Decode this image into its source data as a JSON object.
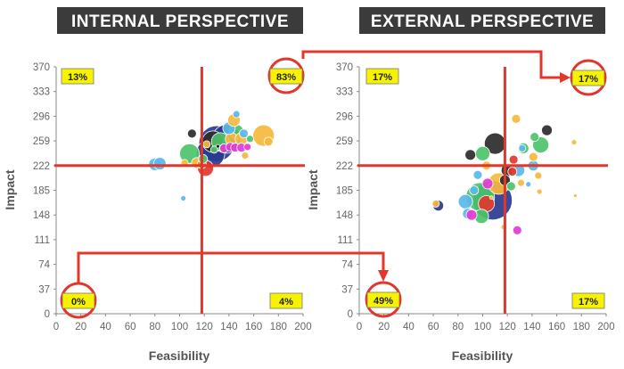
{
  "colors": {
    "accent_red": "#e2372b",
    "highlight_yellow": "#f6f200",
    "banner_dark": "#3b3b3b"
  },
  "chart_data": [
    {
      "type": "scatter",
      "title": "INTERNAL PERSPECTIVE",
      "xlabel": "Feasibility",
      "ylabel": "Impact",
      "xlim": [
        0,
        200
      ],
      "ylim": [
        0,
        370
      ],
      "x_ticks": [
        "0",
        "20",
        "40",
        "60",
        "80",
        "100",
        "120",
        "140",
        "160",
        "180",
        "200"
      ],
      "y_ticks": [
        "0",
        "37",
        "74",
        "111",
        "148",
        "185",
        "222",
        "259",
        "296",
        "333",
        "370"
      ],
      "divider_x": 118,
      "divider_y": 222,
      "quadrant_percentages": {
        "top_left": "13%",
        "top_right": "83%",
        "bottom_left": "0%",
        "bottom_right": "4%"
      },
      "points": [
        {
          "x": 80,
          "y": 224,
          "size": 7,
          "color": "#5bb8e8"
        },
        {
          "x": 84,
          "y": 225,
          "size": 7,
          "color": "#5bb8e8"
        },
        {
          "x": 103,
          "y": 173,
          "size": 3,
          "color": "#5bb8e8"
        },
        {
          "x": 108,
          "y": 240,
          "size": 11,
          "color": "#4cc36a"
        },
        {
          "x": 104,
          "y": 226,
          "size": 4,
          "color": "#f7b83c"
        },
        {
          "x": 110,
          "y": 270,
          "size": 5,
          "color": "#2b2b2b"
        },
        {
          "x": 114,
          "y": 226,
          "size": 6,
          "color": "#f7b83c"
        },
        {
          "x": 118,
          "y": 224,
          "size": 5,
          "color": "#f07b2a"
        },
        {
          "x": 121,
          "y": 218,
          "size": 9,
          "color": "#e2372b"
        },
        {
          "x": 125,
          "y": 240,
          "size": 16,
          "color": "#2a3b8f"
        },
        {
          "x": 119,
          "y": 232,
          "size": 5,
          "color": "#4cc36a"
        },
        {
          "x": 130,
          "y": 255,
          "size": 20,
          "color": "#2a3b8f"
        },
        {
          "x": 127,
          "y": 258,
          "size": 12,
          "color": "#2b2b2b"
        },
        {
          "x": 138,
          "y": 262,
          "size": 16,
          "color": "#2a3b8f"
        },
        {
          "x": 133,
          "y": 258,
          "size": 10,
          "color": "#4cc36a"
        },
        {
          "x": 142,
          "y": 262,
          "size": 7,
          "color": "#f7b83c"
        },
        {
          "x": 140,
          "y": 278,
          "size": 7,
          "color": "#5bb8e8"
        },
        {
          "x": 144,
          "y": 290,
          "size": 7,
          "color": "#f7b83c"
        },
        {
          "x": 146,
          "y": 299,
          "size": 4,
          "color": "#5bb8e8"
        },
        {
          "x": 146,
          "y": 273,
          "size": 8,
          "color": "#4cc36a"
        },
        {
          "x": 150,
          "y": 262,
          "size": 7,
          "color": "#f7b83c"
        },
        {
          "x": 152,
          "y": 270,
          "size": 5,
          "color": "#5bb8e8"
        },
        {
          "x": 136,
          "y": 248,
          "size": 5,
          "color": "#e33bd3"
        },
        {
          "x": 141,
          "y": 250,
          "size": 5,
          "color": "#e33bd3"
        },
        {
          "x": 145,
          "y": 249,
          "size": 5,
          "color": "#e33bd3"
        },
        {
          "x": 150,
          "y": 249,
          "size": 5,
          "color": "#e33bd3"
        },
        {
          "x": 155,
          "y": 250,
          "size": 4,
          "color": "#e33bd3"
        },
        {
          "x": 128,
          "y": 246,
          "size": 4,
          "color": "#4cc36a"
        },
        {
          "x": 122,
          "y": 254,
          "size": 4,
          "color": "#f7b83c"
        },
        {
          "x": 153,
          "y": 237,
          "size": 4,
          "color": "#f7b83c"
        },
        {
          "x": 131,
          "y": 251,
          "size": 2,
          "color": "#111111"
        },
        {
          "x": 157,
          "y": 262,
          "size": 4,
          "color": "#4cc36a"
        },
        {
          "x": 168,
          "y": 267,
          "size": 12,
          "color": "#f7b83c"
        },
        {
          "x": 172,
          "y": 258,
          "size": 5,
          "color": "#f7b83c"
        }
      ]
    },
    {
      "type": "scatter",
      "title": "EXTERNAL PERSPECTIVE",
      "xlabel": "Feasibility",
      "ylabel": "Impact",
      "xlim": [
        0,
        200
      ],
      "ylim": [
        0,
        370
      ],
      "x_ticks": [
        "0",
        "20",
        "40",
        "60",
        "80",
        "100",
        "120",
        "140",
        "160",
        "180",
        "200"
      ],
      "y_ticks": [
        "0",
        "37",
        "74",
        "111",
        "148",
        "185",
        "222",
        "259",
        "296",
        "333",
        "370"
      ],
      "divider_x": 118,
      "divider_y": 222,
      "quadrant_percentages": {
        "top_left": "17%",
        "top_right": "17%",
        "bottom_left": "49%",
        "bottom_right": "17%"
      },
      "points": [
        {
          "x": 108,
          "y": 170,
          "size": 22,
          "color": "#2a3b8f"
        },
        {
          "x": 98,
          "y": 175,
          "size": 16,
          "color": "#4cc36a"
        },
        {
          "x": 113,
          "y": 195,
          "size": 12,
          "color": "#f7b83c"
        },
        {
          "x": 103,
          "y": 165,
          "size": 9,
          "color": "#e2372b"
        },
        {
          "x": 110,
          "y": 255,
          "size": 12,
          "color": "#2b2b2b"
        },
        {
          "x": 90,
          "y": 238,
          "size": 6,
          "color": "#2b2b2b"
        },
        {
          "x": 100,
          "y": 240,
          "size": 8,
          "color": "#4cc36a"
        },
        {
          "x": 103,
          "y": 222,
          "size": 5,
          "color": "#f7b83c"
        },
        {
          "x": 96,
          "y": 208,
          "size": 5,
          "color": "#5bb8e8"
        },
        {
          "x": 93,
          "y": 185,
          "size": 5,
          "color": "#5bb8e8"
        },
        {
          "x": 86,
          "y": 168,
          "size": 8,
          "color": "#5bb8e8"
        },
        {
          "x": 88,
          "y": 150,
          "size": 6,
          "color": "#5bb8e8"
        },
        {
          "x": 91,
          "y": 148,
          "size": 6,
          "color": "#e33bd3"
        },
        {
          "x": 99,
          "y": 146,
          "size": 8,
          "color": "#4cc36a"
        },
        {
          "x": 64,
          "y": 162,
          "size": 6,
          "color": "#2a3b8f"
        },
        {
          "x": 62,
          "y": 165,
          "size": 4,
          "color": "#f7b83c"
        },
        {
          "x": 104,
          "y": 195,
          "size": 6,
          "color": "#e33bd3"
        },
        {
          "x": 118,
          "y": 200,
          "size": 6,
          "color": "#2b2b2b"
        },
        {
          "x": 120,
          "y": 215,
          "size": 7,
          "color": "#2b2b2b"
        },
        {
          "x": 124,
          "y": 213,
          "size": 5,
          "color": "#e2372b"
        },
        {
          "x": 125,
          "y": 231,
          "size": 5,
          "color": "#e2372b"
        },
        {
          "x": 127,
          "y": 292,
          "size": 5,
          "color": "#f7b83c"
        },
        {
          "x": 133,
          "y": 248,
          "size": 6,
          "color": "#4cc36a"
        },
        {
          "x": 132,
          "y": 248,
          "size": 4,
          "color": "#5bb8e8"
        },
        {
          "x": 129,
          "y": 215,
          "size": 7,
          "color": "#5bb8e8"
        },
        {
          "x": 141,
          "y": 235,
          "size": 5,
          "color": "#f7b83c"
        },
        {
          "x": 147,
          "y": 253,
          "size": 9,
          "color": "#4cc36a"
        },
        {
          "x": 152,
          "y": 275,
          "size": 6,
          "color": "#2b2b2b"
        },
        {
          "x": 142,
          "y": 265,
          "size": 5,
          "color": "#4cc36a"
        },
        {
          "x": 141,
          "y": 222,
          "size": 6,
          "color": "#5bb8e8"
        },
        {
          "x": 145,
          "y": 207,
          "size": 4,
          "color": "#f7b83c"
        },
        {
          "x": 146,
          "y": 183,
          "size": 3,
          "color": "#f7b83c"
        },
        {
          "x": 128,
          "y": 125,
          "size": 5,
          "color": "#e33bd3"
        },
        {
          "x": 117,
          "y": 130,
          "size": 3,
          "color": "#f7b83c"
        },
        {
          "x": 131,
          "y": 196,
          "size": 4,
          "color": "#f7b83c"
        },
        {
          "x": 137,
          "y": 194,
          "size": 3,
          "color": "#5bb8e8"
        },
        {
          "x": 174,
          "y": 257,
          "size": 3,
          "color": "#f7b83c"
        },
        {
          "x": 175,
          "y": 177,
          "size": 2,
          "color": "#f7b83c"
        },
        {
          "x": 123,
          "y": 191,
          "size": 5,
          "color": "#4cc36a"
        },
        {
          "x": 107,
          "y": 174,
          "size": 2,
          "color": "#f7b83c"
        }
      ]
    }
  ]
}
